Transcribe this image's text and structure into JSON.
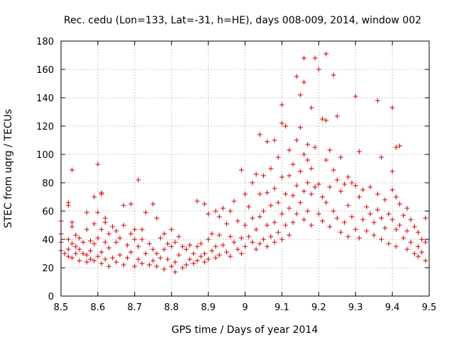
{
  "chart_data": {
    "type": "scatter",
    "title": "Rec. cedu (Lon=133, Lat=-31, h=HE), days 008-009, 2014, window 002",
    "xlabel": "GPS time / Days of year 2014",
    "ylabel": "STEC from uqrg / TECUs",
    "xlim": [
      8.5,
      9.5
    ],
    "ylim": [
      0,
      180
    ],
    "xticks": [
      "8.5",
      "8.6",
      "8.7",
      "8.8",
      "8.9",
      "9",
      "9.1",
      "9.2",
      "9.3",
      "9.4",
      "9.5"
    ],
    "yticks": [
      "0",
      "20",
      "40",
      "60",
      "80",
      "100",
      "120",
      "140",
      "160",
      "180"
    ],
    "grid": true,
    "marker": "+",
    "color": "#cc0000",
    "points": [
      [
        8.5,
        53
      ],
      [
        8.5,
        44
      ],
      [
        8.5,
        38
      ],
      [
        8.5,
        32
      ],
      [
        8.51,
        30
      ],
      [
        8.52,
        64
      ],
      [
        8.52,
        66
      ],
      [
        8.52,
        40
      ],
      [
        8.52,
        33
      ],
      [
        8.52,
        28
      ],
      [
        8.53,
        89
      ],
      [
        8.53,
        52
      ],
      [
        8.53,
        49
      ],
      [
        8.53,
        37
      ],
      [
        8.53,
        27
      ],
      [
        8.54,
        43
      ],
      [
        8.54,
        35
      ],
      [
        8.54,
        30
      ],
      [
        8.55,
        41
      ],
      [
        8.55,
        33
      ],
      [
        8.55,
        25
      ],
      [
        8.56,
        38
      ],
      [
        8.56,
        30
      ],
      [
        8.57,
        59
      ],
      [
        8.57,
        47
      ],
      [
        8.57,
        29
      ],
      [
        8.57,
        24
      ],
      [
        8.58,
        39
      ],
      [
        8.58,
        32
      ],
      [
        8.58,
        26
      ],
      [
        8.59,
        70
      ],
      [
        8.59,
        51
      ],
      [
        8.59,
        37
      ],
      [
        8.59,
        25
      ],
      [
        8.6,
        93
      ],
      [
        8.6,
        59
      ],
      [
        8.6,
        41
      ],
      [
        8.6,
        28
      ],
      [
        8.61,
        73
      ],
      [
        8.61,
        72
      ],
      [
        8.61,
        47
      ],
      [
        8.61,
        31
      ],
      [
        8.61,
        23
      ],
      [
        8.62,
        55
      ],
      [
        8.62,
        52
      ],
      [
        8.62,
        38
      ],
      [
        8.62,
        26
      ],
      [
        8.63,
        44
      ],
      [
        8.63,
        34
      ],
      [
        8.63,
        21
      ],
      [
        8.64,
        49
      ],
      [
        8.64,
        27
      ],
      [
        8.65,
        46
      ],
      [
        8.65,
        38
      ],
      [
        8.65,
        24
      ],
      [
        8.66,
        41
      ],
      [
        8.66,
        29
      ],
      [
        8.67,
        64
      ],
      [
        8.67,
        50
      ],
      [
        8.67,
        22
      ],
      [
        8.68,
        36
      ],
      [
        8.68,
        27
      ],
      [
        8.69,
        65
      ],
      [
        8.69,
        44
      ],
      [
        8.69,
        31
      ],
      [
        8.7,
        47
      ],
      [
        8.7,
        21
      ],
      [
        8.7,
        40
      ],
      [
        8.71,
        82
      ],
      [
        8.71,
        35
      ],
      [
        8.71,
        26
      ],
      [
        8.72,
        47
      ],
      [
        8.72,
        40
      ],
      [
        8.72,
        23
      ],
      [
        8.73,
        59
      ],
      [
        8.73,
        30
      ],
      [
        8.74,
        37
      ],
      [
        8.74,
        22
      ],
      [
        8.75,
        65
      ],
      [
        8.75,
        33
      ],
      [
        8.75,
        25
      ],
      [
        8.76,
        55
      ],
      [
        8.76,
        30
      ],
      [
        8.76,
        21
      ],
      [
        8.77,
        41
      ],
      [
        8.77,
        27
      ],
      [
        8.78,
        44
      ],
      [
        8.78,
        33
      ],
      [
        8.78,
        19
      ],
      [
        8.79,
        37
      ],
      [
        8.79,
        26
      ],
      [
        8.8,
        47
      ],
      [
        8.8,
        35
      ],
      [
        8.8,
        21
      ],
      [
        8.81,
        38
      ],
      [
        8.81,
        24
      ],
      [
        8.81,
        17
      ],
      [
        8.82,
        42
      ],
      [
        8.82,
        29
      ],
      [
        8.83,
        35
      ],
      [
        8.83,
        20
      ],
      [
        8.84,
        33
      ],
      [
        8.84,
        22
      ],
      [
        8.85,
        36
      ],
      [
        8.85,
        26
      ],
      [
        8.86,
        30
      ],
      [
        8.86,
        23
      ],
      [
        8.87,
        35
      ],
      [
        8.87,
        67
      ],
      [
        8.87,
        25
      ],
      [
        8.88,
        37
      ],
      [
        8.88,
        28
      ],
      [
        8.89,
        65
      ],
      [
        8.89,
        30
      ],
      [
        8.89,
        24
      ],
      [
        8.9,
        58
      ],
      [
        8.9,
        40
      ],
      [
        8.9,
        26
      ],
      [
        8.91,
        44
      ],
      [
        8.91,
        32
      ],
      [
        8.92,
        60
      ],
      [
        8.92,
        35
      ],
      [
        8.92,
        27
      ],
      [
        8.93,
        56
      ],
      [
        8.93,
        43
      ],
      [
        8.93,
        29
      ],
      [
        8.94,
        62
      ],
      [
        8.94,
        36
      ],
      [
        8.95,
        51
      ],
      [
        8.95,
        31
      ],
      [
        8.96,
        60
      ],
      [
        8.96,
        42
      ],
      [
        8.96,
        28
      ],
      [
        8.97,
        67
      ],
      [
        8.97,
        38
      ],
      [
        8.98,
        53
      ],
      [
        8.98,
        33
      ],
      [
        8.99,
        89
      ],
      [
        8.99,
        41
      ],
      [
        8.99,
        30
      ],
      [
        9.0,
        72
      ],
      [
        9.0,
        50
      ],
      [
        9.0,
        35
      ],
      [
        9.01,
        63
      ],
      [
        9.01,
        42
      ],
      [
        9.02,
        80
      ],
      [
        9.02,
        55
      ],
      [
        9.02,
        38
      ],
      [
        9.03,
        86
      ],
      [
        9.03,
        47
      ],
      [
        9.03,
        33
      ],
      [
        9.04,
        114
      ],
      [
        9.04,
        72
      ],
      [
        9.04,
        56
      ],
      [
        9.04,
        37
      ],
      [
        9.05,
        85
      ],
      [
        9.05,
        60
      ],
      [
        9.05,
        40
      ],
      [
        9.06,
        109
      ],
      [
        9.06,
        73
      ],
      [
        9.06,
        50
      ],
      [
        9.06,
        35
      ],
      [
        9.07,
        90
      ],
      [
        9.07,
        64
      ],
      [
        9.07,
        42
      ],
      [
        9.08,
        110
      ],
      [
        9.08,
        76
      ],
      [
        9.08,
        52
      ],
      [
        9.08,
        38
      ],
      [
        9.09,
        98
      ],
      [
        9.09,
        66
      ],
      [
        9.09,
        45
      ],
      [
        9.1,
        135
      ],
      [
        9.1,
        122
      ],
      [
        9.1,
        84
      ],
      [
        9.1,
        58
      ],
      [
        9.1,
        40
      ],
      [
        9.11,
        120
      ],
      [
        9.11,
        72
      ],
      [
        9.11,
        50
      ],
      [
        9.12,
        103
      ],
      [
        9.12,
        85
      ],
      [
        9.12,
        62
      ],
      [
        9.12,
        43
      ],
      [
        9.13,
        93
      ],
      [
        9.13,
        71
      ],
      [
        9.13,
        52
      ],
      [
        9.14,
        155
      ],
      [
        9.14,
        110
      ],
      [
        9.14,
        78
      ],
      [
        9.14,
        58
      ],
      [
        9.15,
        142
      ],
      [
        9.15,
        119
      ],
      [
        9.15,
        88
      ],
      [
        9.15,
        66
      ],
      [
        9.16,
        151
      ],
      [
        9.16,
        168
      ],
      [
        9.16,
        100
      ],
      [
        9.16,
        74
      ],
      [
        9.16,
        54
      ],
      [
        9.17,
        107
      ],
      [
        9.17,
        96
      ],
      [
        9.17,
        80
      ],
      [
        9.17,
        60
      ],
      [
        9.18,
        133
      ],
      [
        9.18,
        90
      ],
      [
        9.18,
        72
      ],
      [
        9.18,
        50
      ],
      [
        9.19,
        168
      ],
      [
        9.19,
        105
      ],
      [
        9.19,
        77
      ],
      [
        9.2,
        160
      ],
      [
        9.2,
        79
      ],
      [
        9.2,
        58
      ],
      [
        9.21,
        125
      ],
      [
        9.21,
        70
      ],
      [
        9.21,
        53
      ],
      [
        9.22,
        171
      ],
      [
        9.22,
        124
      ],
      [
        9.22,
        96
      ],
      [
        9.22,
        66
      ],
      [
        9.23,
        103
      ],
      [
        9.23,
        77
      ],
      [
        9.23,
        49
      ],
      [
        9.24,
        156
      ],
      [
        9.24,
        89
      ],
      [
        9.24,
        60
      ],
      [
        9.25,
        127
      ],
      [
        9.25,
        82
      ],
      [
        9.25,
        55
      ],
      [
        9.26,
        98
      ],
      [
        9.26,
        74
      ],
      [
        9.26,
        45
      ],
      [
        9.27,
        79
      ],
      [
        9.27,
        52
      ],
      [
        9.28,
        84
      ],
      [
        9.28,
        64
      ],
      [
        9.28,
        42
      ],
      [
        9.29,
        80
      ],
      [
        9.29,
        56
      ],
      [
        9.3,
        141
      ],
      [
        9.3,
        78
      ],
      [
        9.3,
        47
      ],
      [
        9.31,
        102
      ],
      [
        9.31,
        70
      ],
      [
        9.31,
        41
      ],
      [
        9.32,
        75
      ],
      [
        9.32,
        54
      ],
      [
        9.33,
        63
      ],
      [
        9.33,
        46
      ],
      [
        9.34,
        77
      ],
      [
        9.34,
        58
      ],
      [
        9.35,
        52
      ],
      [
        9.35,
        43
      ],
      [
        9.36,
        138
      ],
      [
        9.36,
        72
      ],
      [
        9.36,
        61
      ],
      [
        9.37,
        98
      ],
      [
        9.37,
        55
      ],
      [
        9.37,
        40
      ],
      [
        9.38,
        68
      ],
      [
        9.38,
        48
      ],
      [
        9.39,
        58
      ],
      [
        9.39,
        37
      ],
      [
        9.4,
        133
      ],
      [
        9.4,
        88
      ],
      [
        9.4,
        75
      ],
      [
        9.4,
        54
      ],
      [
        9.41,
        105
      ],
      [
        9.41,
        70
      ],
      [
        9.41,
        47
      ],
      [
        9.41,
        35
      ],
      [
        9.42,
        106
      ],
      [
        9.42,
        65
      ],
      [
        9.42,
        50
      ],
      [
        9.43,
        57
      ],
      [
        9.43,
        41
      ],
      [
        9.44,
        62
      ],
      [
        9.44,
        46
      ],
      [
        9.44,
        33
      ],
      [
        9.45,
        54
      ],
      [
        9.45,
        38
      ],
      [
        9.46,
        49
      ],
      [
        9.46,
        30
      ],
      [
        9.47,
        45
      ],
      [
        9.47,
        35
      ],
      [
        9.47,
        28
      ],
      [
        9.48,
        40
      ],
      [
        9.48,
        31
      ],
      [
        9.49,
        55
      ],
      [
        9.49,
        38
      ],
      [
        9.49,
        25
      ]
    ]
  }
}
